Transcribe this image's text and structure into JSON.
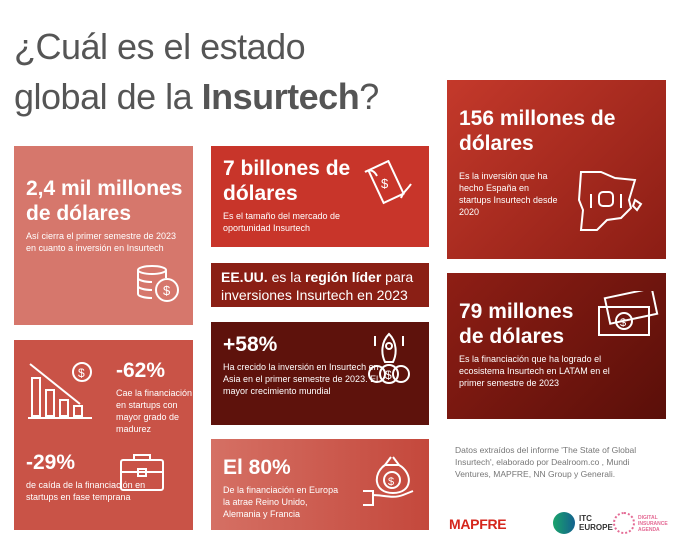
{
  "title": {
    "line1": "¿Cuál es el estado",
    "line2_pre": "global de la ",
    "line2_bold": "Insurtech",
    "line2_post": "?"
  },
  "cards": {
    "a": {
      "value": "2,4 mil millones de dólares",
      "text": "Así cierra el primer semestre de 2023 en cuanto a inversión en Insurtech",
      "icon": "coins-icon"
    },
    "b": {
      "value": "7 billones de dólares",
      "text": "Es el tamaño del mercado de oportunidad Insurtech",
      "icon": "flying-money-icon"
    },
    "c": {
      "bold1": "EE.UU.",
      "t1": " es la ",
      "bold2": "región líder",
      "t2": " para inversiones Insurtech en 2023"
    },
    "d": {
      "value": "+58%",
      "text": "Ha crecido la inversión en Insurtech en Asia en el primer semestre de 2023. El mayor crecimiento mundial",
      "icon": "rocket-icon"
    },
    "e1": {
      "value": "-62%",
      "text": "Cae la financiación en startups con mayor grado de madurez",
      "icon": "declining-chart-icon"
    },
    "e2": {
      "value": "-29%",
      "text": "de caída de la financiación en startups en fase temprana",
      "icon": "briefcase-icon"
    },
    "f": {
      "value": "El 80%",
      "text": "De la financiación en Europa la atrae Reino Unido, Alemania y Francia",
      "icon": "money-bag-hand-icon"
    },
    "g": {
      "value": "156 millones de dólares",
      "text": "Es la inversión que ha hecho España en startups Insurtech desde 2020",
      "icon": "spain-map-icon"
    },
    "h": {
      "value": "79 millones de dólares",
      "text": "Es la financiación que ha logrado el ecosistema Insurtech en LATAM en el primer semestre de 2023",
      "icon": "banknotes-icon"
    }
  },
  "source": "Datos extraídos del informe 'The State of Global Insurtech', elaborado por Dealroom.co , Mundi Ventures, MAPFRE, NN Group y Generali.",
  "logos": {
    "mapfre": "MAPFRE",
    "itc": "ITC EUROPE",
    "dia": "DIGITAL INSURANCE AGENDA"
  },
  "colors": {
    "accent": "#c8352a",
    "dark": "#5e120c",
    "pink": "#d6776c"
  }
}
